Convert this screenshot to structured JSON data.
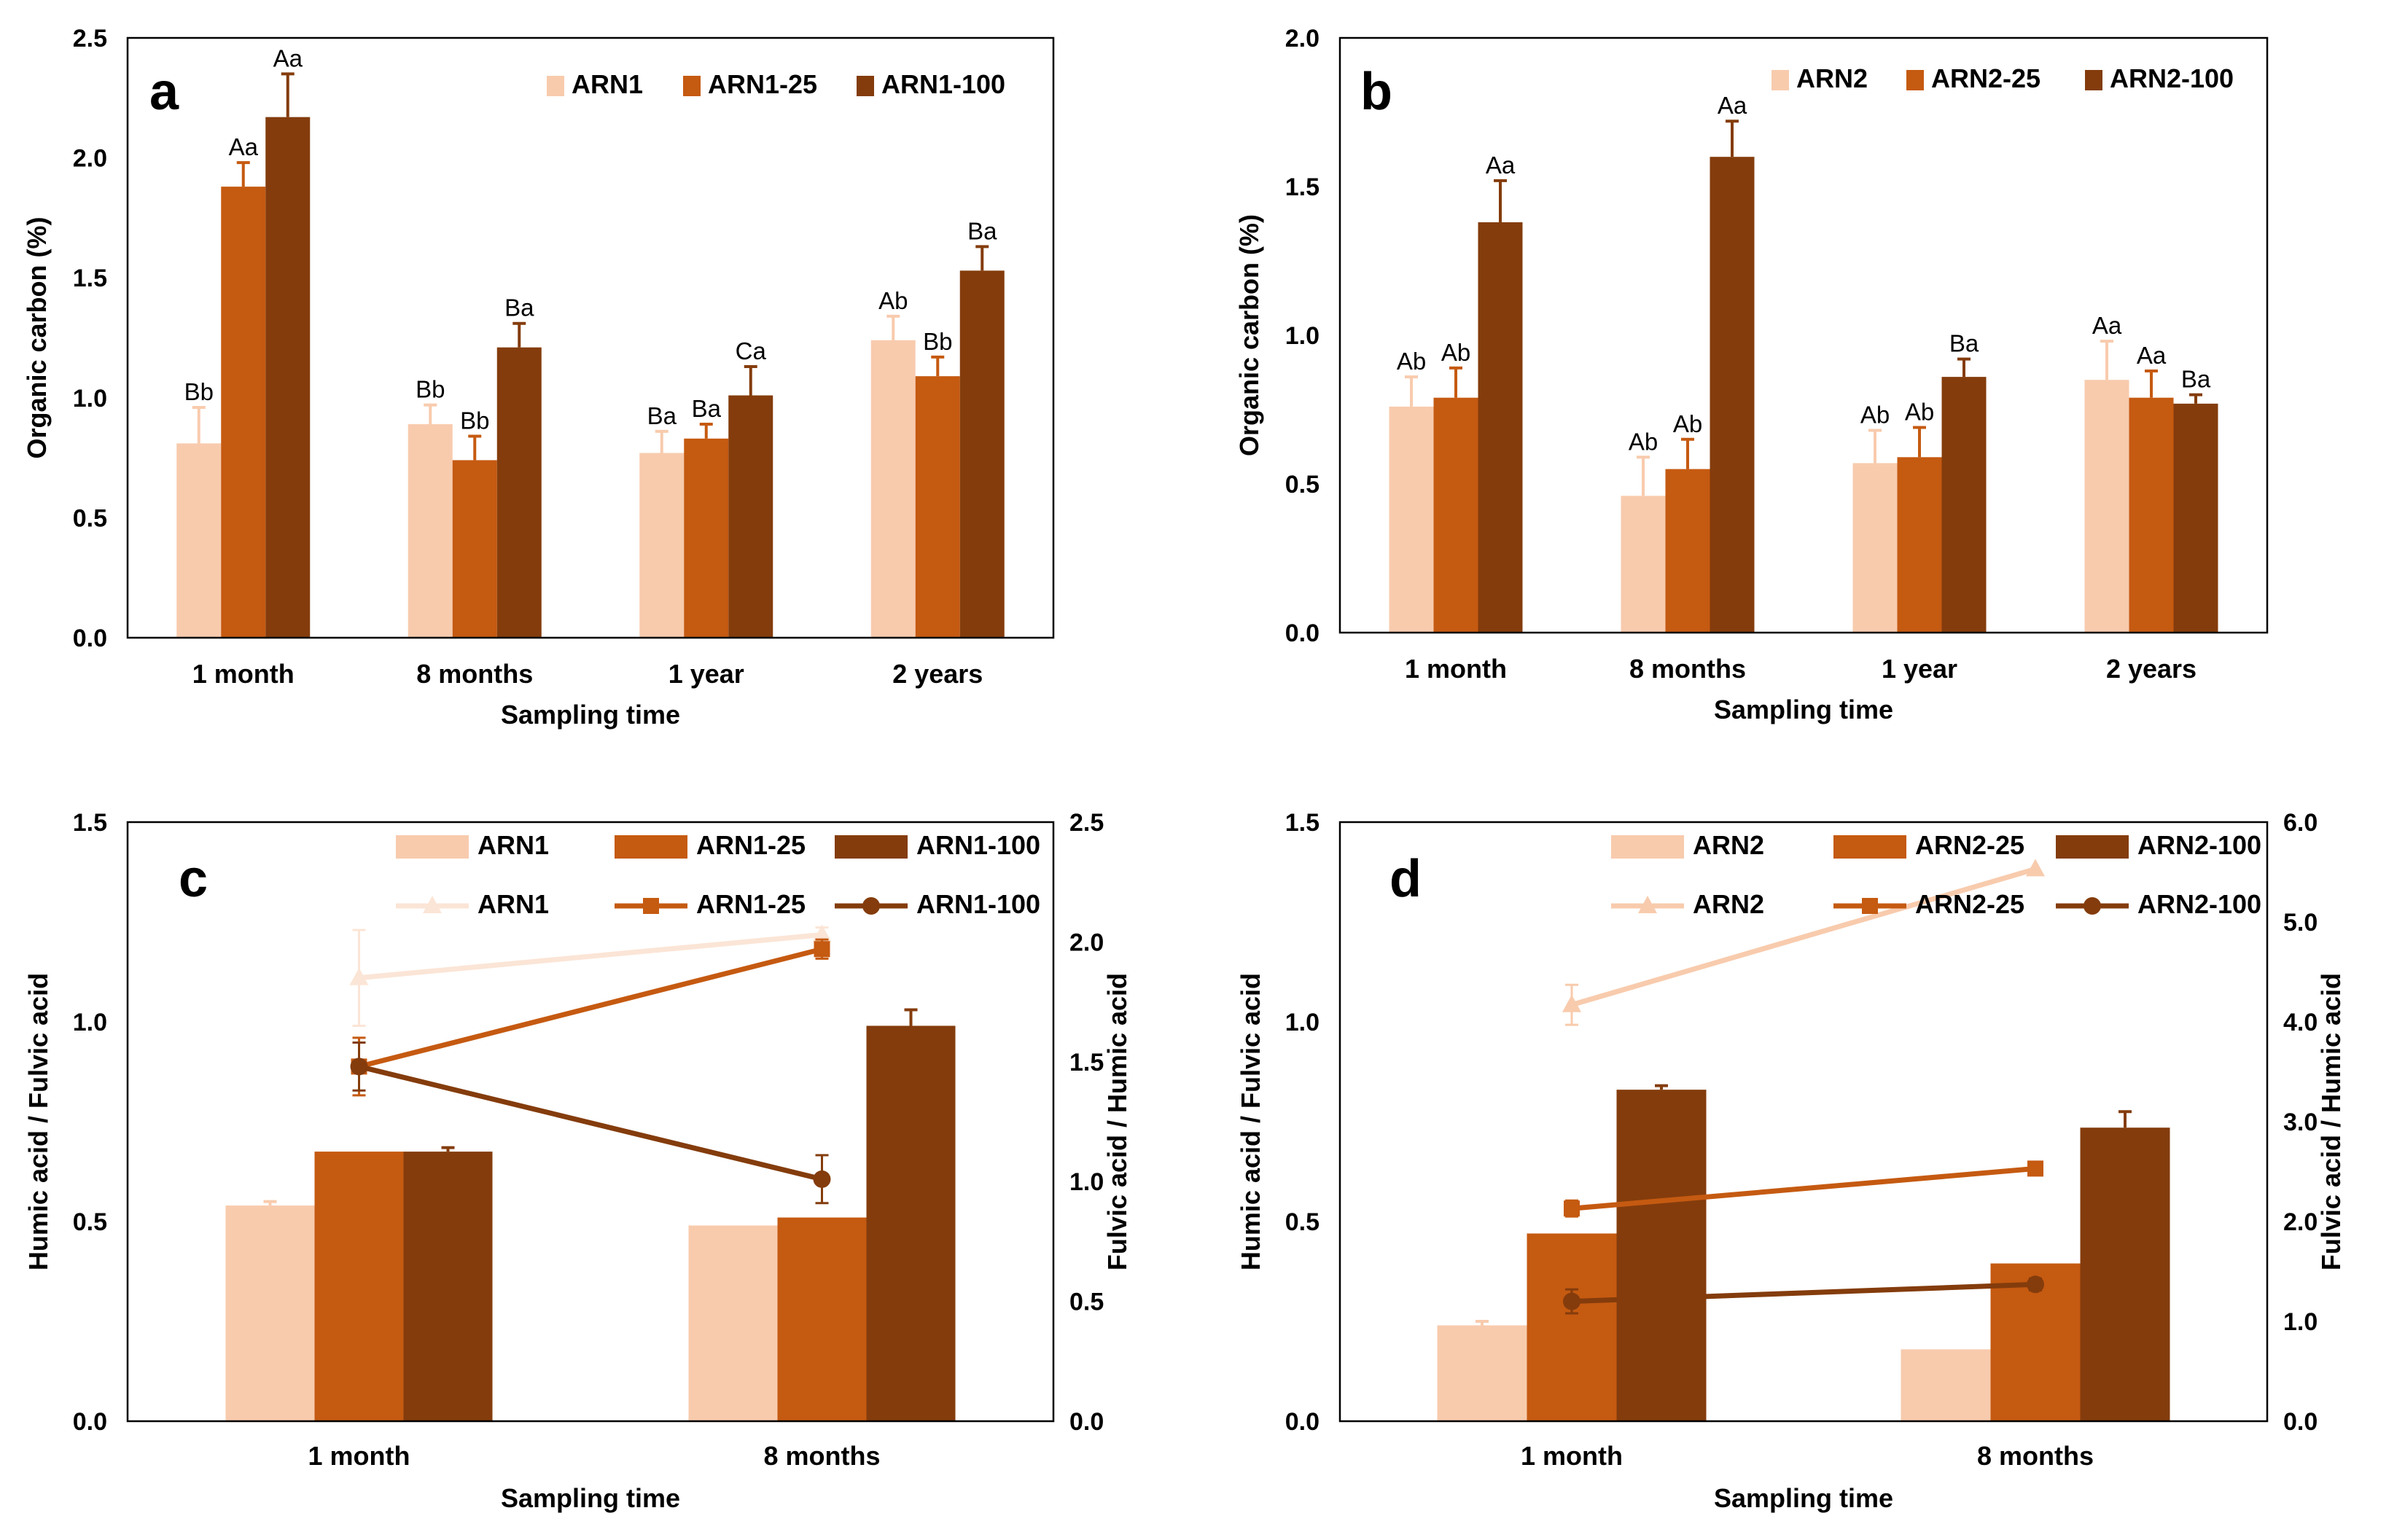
{
  "colors": {
    "light": "#F8CBAD",
    "mid": "#C55A11",
    "dark": "#843C0C",
    "light_line": "#FBE5D6"
  },
  "chart_data": [
    {
      "panel": "a",
      "type": "bar",
      "categories": [
        "1 month",
        "8 months",
        "1 year",
        "2 years"
      ],
      "xlabel": "Sampling time",
      "ylabel": "Organic carbon (%)",
      "ylim": [
        0,
        2.5
      ],
      "yticks": [
        "0.0",
        "0.5",
        "1.0",
        "1.5",
        "2.0",
        "2.5"
      ],
      "series": [
        {
          "name": "ARN1",
          "color": "light",
          "values": [
            0.81,
            0.89,
            0.77,
            1.24
          ],
          "errors": [
            0.15,
            0.08,
            0.09,
            0.1
          ],
          "labels": [
            "Bb",
            "Bb",
            "Ba",
            "Ab"
          ]
        },
        {
          "name": "ARN1-25",
          "color": "mid",
          "values": [
            1.88,
            0.74,
            0.83,
            1.09
          ],
          "errors": [
            0.1,
            0.1,
            0.06,
            0.08
          ],
          "labels": [
            "Aa",
            "Bb",
            "Ba",
            "Bb"
          ]
        },
        {
          "name": "ARN1-100",
          "color": "dark",
          "values": [
            2.17,
            1.21,
            1.01,
            1.53
          ],
          "errors": [
            0.18,
            0.1,
            0.12,
            0.1
          ],
          "labels": [
            "Aa",
            "Ba",
            "Ca",
            "Ba"
          ]
        }
      ]
    },
    {
      "panel": "b",
      "type": "bar",
      "categories": [
        "1 month",
        "8 months",
        "1 year",
        "2 years"
      ],
      "xlabel": "Sampling time",
      "ylabel": "Organic carbon (%)",
      "ylim": [
        0,
        2.0
      ],
      "yticks": [
        "0.0",
        "0.5",
        "1.0",
        "1.5",
        "2.0"
      ],
      "series": [
        {
          "name": "ARN2",
          "color": "light",
          "values": [
            0.76,
            0.46,
            0.57,
            0.85
          ],
          "errors": [
            0.1,
            0.13,
            0.11,
            0.13
          ],
          "labels": [
            "Ab",
            "Ab",
            "Ab",
            "Aa"
          ]
        },
        {
          "name": "ARN2-25",
          "color": "mid",
          "values": [
            0.79,
            0.55,
            0.59,
            0.79
          ],
          "errors": [
            0.1,
            0.1,
            0.1,
            0.09
          ],
          "labels": [
            "Ab",
            "Ab",
            "Ab",
            "Aa"
          ]
        },
        {
          "name": "ARN2-100",
          "color": "dark",
          "values": [
            1.38,
            1.6,
            0.86,
            0.77
          ],
          "errors": [
            0.14,
            0.12,
            0.06,
            0.03
          ],
          "labels": [
            "Aa",
            "Aa",
            "Ba",
            "Ba"
          ]
        }
      ]
    },
    {
      "panel": "c",
      "type": "bar+line",
      "categories": [
        "1 month",
        "8 months"
      ],
      "xlabel": "Sampling time",
      "ylabel": "Humic acid / Fulvic acid",
      "y2label": "Fulvic acid / Humic acid",
      "ylim": [
        0,
        1.5
      ],
      "yticks": [
        "0.0",
        "0.5",
        "1.0",
        "1.5"
      ],
      "y2lim": [
        0,
        2.5
      ],
      "y2ticks": [
        "0.0",
        "0.5",
        "1.0",
        "1.5",
        "2.0",
        "2.5"
      ],
      "bar_series": [
        {
          "name": "ARN1",
          "color": "light",
          "values": [
            0.54,
            0.49
          ],
          "errors": [
            0.01,
            0.0
          ]
        },
        {
          "name": "ARN1-25",
          "color": "mid",
          "values": [
            0.675,
            0.51
          ],
          "errors": [
            0.0,
            0.0
          ]
        },
        {
          "name": "ARN1-100",
          "color": "dark",
          "values": [
            0.675,
            0.99
          ],
          "errors": [
            0.01,
            0.04
          ]
        }
      ],
      "line_series": [
        {
          "name": "ARN1",
          "color": "light_line",
          "marker": "triangle",
          "values": [
            1.85,
            2.03
          ],
          "errors": [
            0.2,
            0.03
          ]
        },
        {
          "name": "ARN1-25",
          "color": "mid",
          "marker": "square",
          "values": [
            1.48,
            1.97
          ],
          "errors": [
            0.12,
            0.04
          ]
        },
        {
          "name": "ARN1-100",
          "color": "dark",
          "marker": "circle",
          "values": [
            1.48,
            1.01
          ],
          "errors": [
            0.1,
            0.1
          ]
        }
      ]
    },
    {
      "panel": "d",
      "type": "bar+line",
      "categories": [
        "1 month",
        "8 months"
      ],
      "xlabel": "Sampling time",
      "ylabel": "Humic acid / Fulvic acid",
      "y2label": "Fulvic acid / Humic acid",
      "ylim": [
        0,
        1.5
      ],
      "yticks": [
        "0.0",
        "0.5",
        "1.0",
        "1.5"
      ],
      "y2lim": [
        0,
        6.0
      ],
      "y2ticks": [
        "0.0",
        "1.0",
        "2.0",
        "3.0",
        "4.0",
        "5.0",
        "6.0"
      ],
      "bar_series": [
        {
          "name": "ARN2",
          "color": "light",
          "values": [
            0.24,
            0.18
          ],
          "errors": [
            0.01,
            0.0
          ]
        },
        {
          "name": "ARN2-25",
          "color": "mid",
          "values": [
            0.47,
            0.395
          ],
          "errors": [
            0.0,
            0.0
          ]
        },
        {
          "name": "ARN2-100",
          "color": "dark",
          "values": [
            0.83,
            0.735
          ],
          "errors": [
            0.01,
            0.04
          ]
        }
      ],
      "line_series": [
        {
          "name": "ARN2",
          "color": "light",
          "marker": "triangle",
          "values": [
            4.17,
            5.53
          ],
          "errors": [
            0.2,
            0.0
          ]
        },
        {
          "name": "ARN2-25",
          "color": "mid",
          "marker": "square",
          "values": [
            2.13,
            2.53
          ],
          "errors": [
            0.08,
            0.0
          ]
        },
        {
          "name": "ARN2-100",
          "color": "dark",
          "marker": "circle",
          "values": [
            1.2,
            1.37
          ],
          "errors": [
            0.12,
            0.06
          ]
        }
      ]
    }
  ]
}
